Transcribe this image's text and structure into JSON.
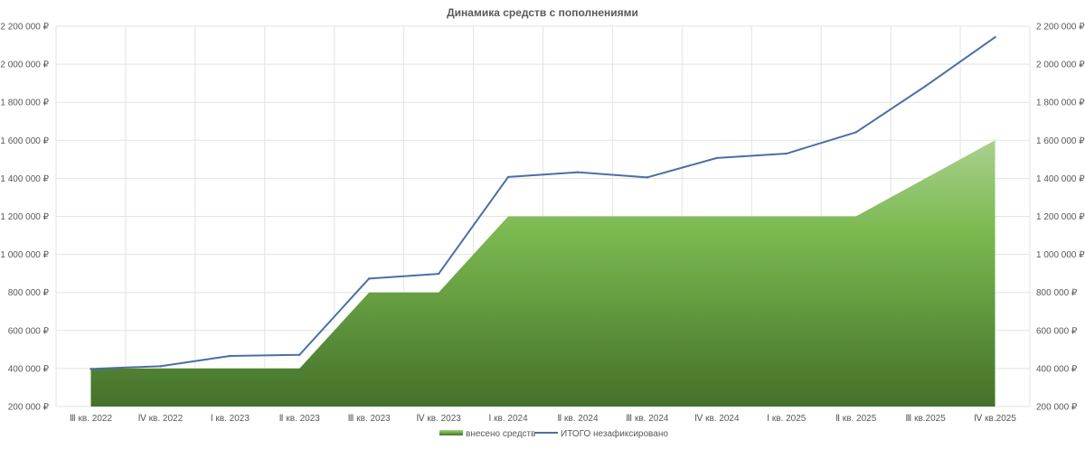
{
  "chart_data": {
    "type": "area",
    "title": "Динамика средств с пополнениями",
    "categories": [
      "Ⅲ кв. 2022",
      "Ⅳ кв. 2022",
      "Ⅰ кв. 2023",
      "Ⅱ кв. 2023",
      "Ⅲ кв. 2023",
      "Ⅳ кв. 2023",
      "Ⅰ кв. 2024",
      "Ⅱ кв. 2024",
      "Ⅲ кв. 2024",
      "Ⅳ кв. 2024",
      "Ⅰ кв. 2025",
      "Ⅱ кв. 2025",
      "Ⅲ кв.2025",
      "Ⅳ кв.2025"
    ],
    "series": [
      {
        "name": "внесено средств",
        "type": "area",
        "color": "#70ad47",
        "values": [
          400000,
          400000,
          400000,
          400000,
          800000,
          800000,
          1200000,
          1200000,
          1200000,
          1200000,
          1200000,
          1200000,
          1400000,
          1600000
        ]
      },
      {
        "name": "ИТОГО незафиксировано",
        "type": "line",
        "color": "#4a6fa5",
        "values": [
          398000,
          412000,
          466000,
          472000,
          873000,
          898000,
          1407000,
          1432000,
          1405000,
          1507000,
          1530000,
          1642000,
          1885000,
          2142000
        ]
      }
    ],
    "ylim": [
      200000,
      2200000
    ],
    "yticks": [
      200000,
      400000,
      600000,
      800000,
      1000000,
      1200000,
      1400000,
      1600000,
      1800000,
      2000000,
      2200000
    ],
    "ytick_labels": [
      "200 000 ₽",
      "400 000 ₽",
      "600 000 ₽",
      "800 000 ₽",
      "1 000 000 ₽",
      "1 200 000 ₽",
      "1 400 000 ₽",
      "1 600 000 ₽",
      "1 800 000 ₽",
      "2 000 000 ₽",
      "2 200 000 ₽"
    ],
    "secondary_axis": true,
    "grid": true,
    "legend_position": "bottom"
  }
}
